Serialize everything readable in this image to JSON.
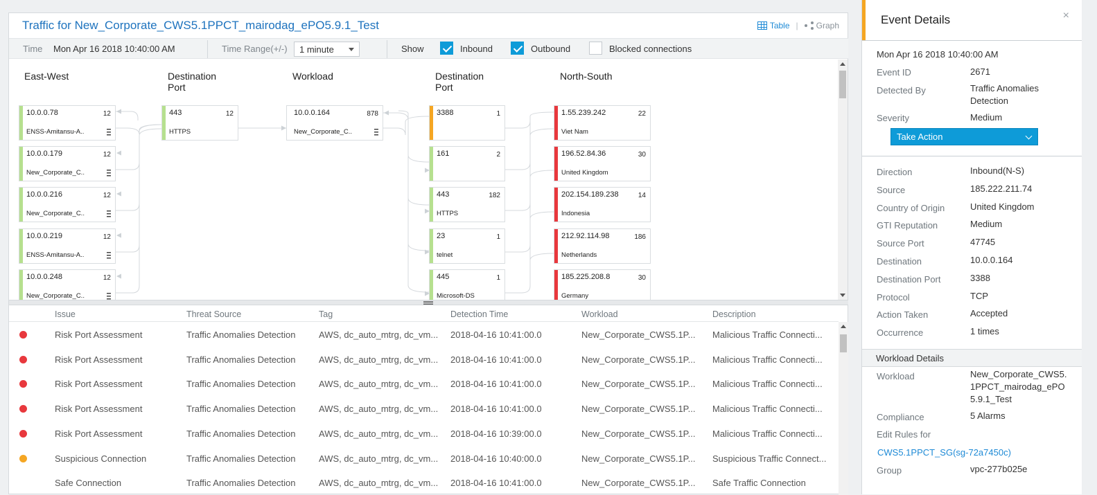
{
  "main": {
    "title": "Traffic for New_Corporate_CWS5.1PPCT_mairodag_ePO5.9.1_Test",
    "view_table": "Table",
    "view_separator": "|",
    "view_graph": "Graph"
  },
  "filters": {
    "time_label": "Time",
    "time_value": "Mon Apr 16 2018 10:40:00 AM",
    "range_label": "Time Range(+/-)",
    "range_value": "1 minute",
    "show_label": "Show",
    "inbound_label": "Inbound",
    "inbound_checked": true,
    "outbound_label": "Outbound",
    "outbound_checked": true,
    "blocked_label": "Blocked connections",
    "blocked_checked": false
  },
  "graph": {
    "headers": {
      "east_west": "East-West",
      "dest_port_1": "Destination Port",
      "workload": "Workload",
      "dest_port_2": "Destination Port",
      "north_south": "North-South"
    },
    "east_west": [
      {
        "ip": "10.0.0.78",
        "count": "12",
        "sub": "ENSS-Amitansu-A..",
        "color": "#b6e08f"
      },
      {
        "ip": "10.0.0.179",
        "count": "12",
        "sub": "New_Corporate_C..",
        "color": "#b6e08f"
      },
      {
        "ip": "10.0.0.216",
        "count": "12",
        "sub": "New_Corporate_C..",
        "color": "#b6e08f"
      },
      {
        "ip": "10.0.0.219",
        "count": "12",
        "sub": "ENSS-Amitansu-A..",
        "color": "#b6e08f"
      },
      {
        "ip": "10.0.0.248",
        "count": "12",
        "sub": "New_Corporate_C..",
        "color": "#b6e08f"
      }
    ],
    "dest_port_1": [
      {
        "ip": "443",
        "count": "12",
        "sub": "HTTPS",
        "color": "#b6e08f"
      }
    ],
    "workload": [
      {
        "ip": "10.0.0.164",
        "count": "878",
        "sub": "New_Corporate_C..",
        "color": "#ffffff"
      }
    ],
    "dest_port_2": [
      {
        "ip": "3388",
        "count": "1",
        "sub": "",
        "color": "#f5a623"
      },
      {
        "ip": "161",
        "count": "2",
        "sub": "",
        "color": "#b6e08f"
      },
      {
        "ip": "443",
        "count": "182",
        "sub": "HTTPS",
        "color": "#b6e08f"
      },
      {
        "ip": "23",
        "count": "1",
        "sub": "telnet",
        "color": "#b6e08f"
      },
      {
        "ip": "445",
        "count": "1",
        "sub": "Microsoft-DS",
        "color": "#b6e08f"
      }
    ],
    "north_south": [
      {
        "ip": "1.55.239.242",
        "count": "22",
        "sub": "Viet Nam",
        "color": "#e8383d"
      },
      {
        "ip": "196.52.84.36",
        "count": "30",
        "sub": "United Kingdom",
        "color": "#e8383d"
      },
      {
        "ip": "202.154.189.238",
        "count": "14",
        "sub": "Indonesia",
        "color": "#e8383d"
      },
      {
        "ip": "212.92.114.98",
        "count": "186",
        "sub": "Netherlands",
        "color": "#e8383d"
      },
      {
        "ip": "185.225.208.8",
        "count": "30",
        "sub": "Germany",
        "color": "#e8383d"
      }
    ]
  },
  "table": {
    "columns": [
      "Issue",
      "Threat Source",
      "Tag",
      "Detection Time",
      "Workload",
      "Description"
    ],
    "rows": [
      {
        "severity_color": "#e8383d",
        "issue": "Risk Port Assessment",
        "source": "Traffic Anomalies Detection",
        "tag": "AWS, dc_auto_mtrg, dc_vm...",
        "time": "2018-04-16 10:41:00.0",
        "workload": "New_Corporate_CWS5.1P...",
        "desc": "Malicious Traffic Connecti..."
      },
      {
        "severity_color": "#e8383d",
        "issue": "Risk Port Assessment",
        "source": "Traffic Anomalies Detection",
        "tag": "AWS, dc_auto_mtrg, dc_vm...",
        "time": "2018-04-16 10:41:00.0",
        "workload": "New_Corporate_CWS5.1P...",
        "desc": "Malicious Traffic Connecti..."
      },
      {
        "severity_color": "#e8383d",
        "issue": "Risk Port Assessment",
        "source": "Traffic Anomalies Detection",
        "tag": "AWS, dc_auto_mtrg, dc_vm...",
        "time": "2018-04-16 10:41:00.0",
        "workload": "New_Corporate_CWS5.1P...",
        "desc": "Malicious Traffic Connecti..."
      },
      {
        "severity_color": "#e8383d",
        "issue": "Risk Port Assessment",
        "source": "Traffic Anomalies Detection",
        "tag": "AWS, dc_auto_mtrg, dc_vm...",
        "time": "2018-04-16 10:41:00.0",
        "workload": "New_Corporate_CWS5.1P...",
        "desc": "Malicious Traffic Connecti..."
      },
      {
        "severity_color": "#e8383d",
        "issue": "Risk Port Assessment",
        "source": "Traffic Anomalies Detection",
        "tag": "AWS, dc_auto_mtrg, dc_vm...",
        "time": "2018-04-16 10:39:00.0",
        "workload": "New_Corporate_CWS5.1P...",
        "desc": "Malicious Traffic Connecti..."
      },
      {
        "severity_color": "#f5a623",
        "issue": "Suspicious Connection",
        "source": "Traffic Anomalies Detection",
        "tag": "AWS, dc_auto_mtrg, dc_vm...",
        "time": "2018-04-16 10:40:00.0",
        "workload": "New_Corporate_CWS5.1P...",
        "desc": "Suspicious Traffic Connect..."
      },
      {
        "severity_color": "",
        "issue": "Safe Connection",
        "source": "Traffic Anomalies Detection",
        "tag": "AWS, dc_auto_mtrg, dc_vm...",
        "time": "2018-04-16 10:41:00.0",
        "workload": "New_Corporate_CWS5.1P...",
        "desc": "Safe Traffic Connection"
      }
    ]
  },
  "event": {
    "title": "Event Details",
    "close": "×",
    "date": "Mon Apr 16 2018 10:40:00 AM",
    "event_id_label": "Event ID",
    "event_id": "2671",
    "detected_by_label": "Detected By",
    "detected_by": "Traffic Anomalies Detection",
    "severity_label": "Severity",
    "severity": "Medium",
    "take_action": "Take Action",
    "details": [
      {
        "label": "Direction",
        "value": "Inbound(N-S)"
      },
      {
        "label": "Source",
        "value": "185.222.211.74"
      },
      {
        "label": "Country of Origin",
        "value": "United Kingdom"
      },
      {
        "label": "GTI Reputation",
        "value": "Medium"
      },
      {
        "label": "Source Port",
        "value": "47745"
      },
      {
        "label": "Destination",
        "value": "10.0.0.164"
      },
      {
        "label": "Destination Port",
        "value": "3388"
      },
      {
        "label": "Protocol",
        "value": "TCP"
      },
      {
        "label": "Action Taken",
        "value": "Accepted"
      },
      {
        "label": "Occurrence",
        "value": "1 times"
      }
    ],
    "workload_section": "Workload Details",
    "workload_label": "Workload",
    "workload_value": "New_Corporate_CWS5.1PPCT_mairodag_ePO5.9.1_Test",
    "compliance_label": "Compliance",
    "compliance_value": "5 Alarms",
    "edit_rules_label": "Edit Rules for",
    "edit_rules_link": "CWS5.1PPCT_SG(sg-72a7450c)",
    "group_label": "Group",
    "group_value": "vpc-277b025e"
  }
}
